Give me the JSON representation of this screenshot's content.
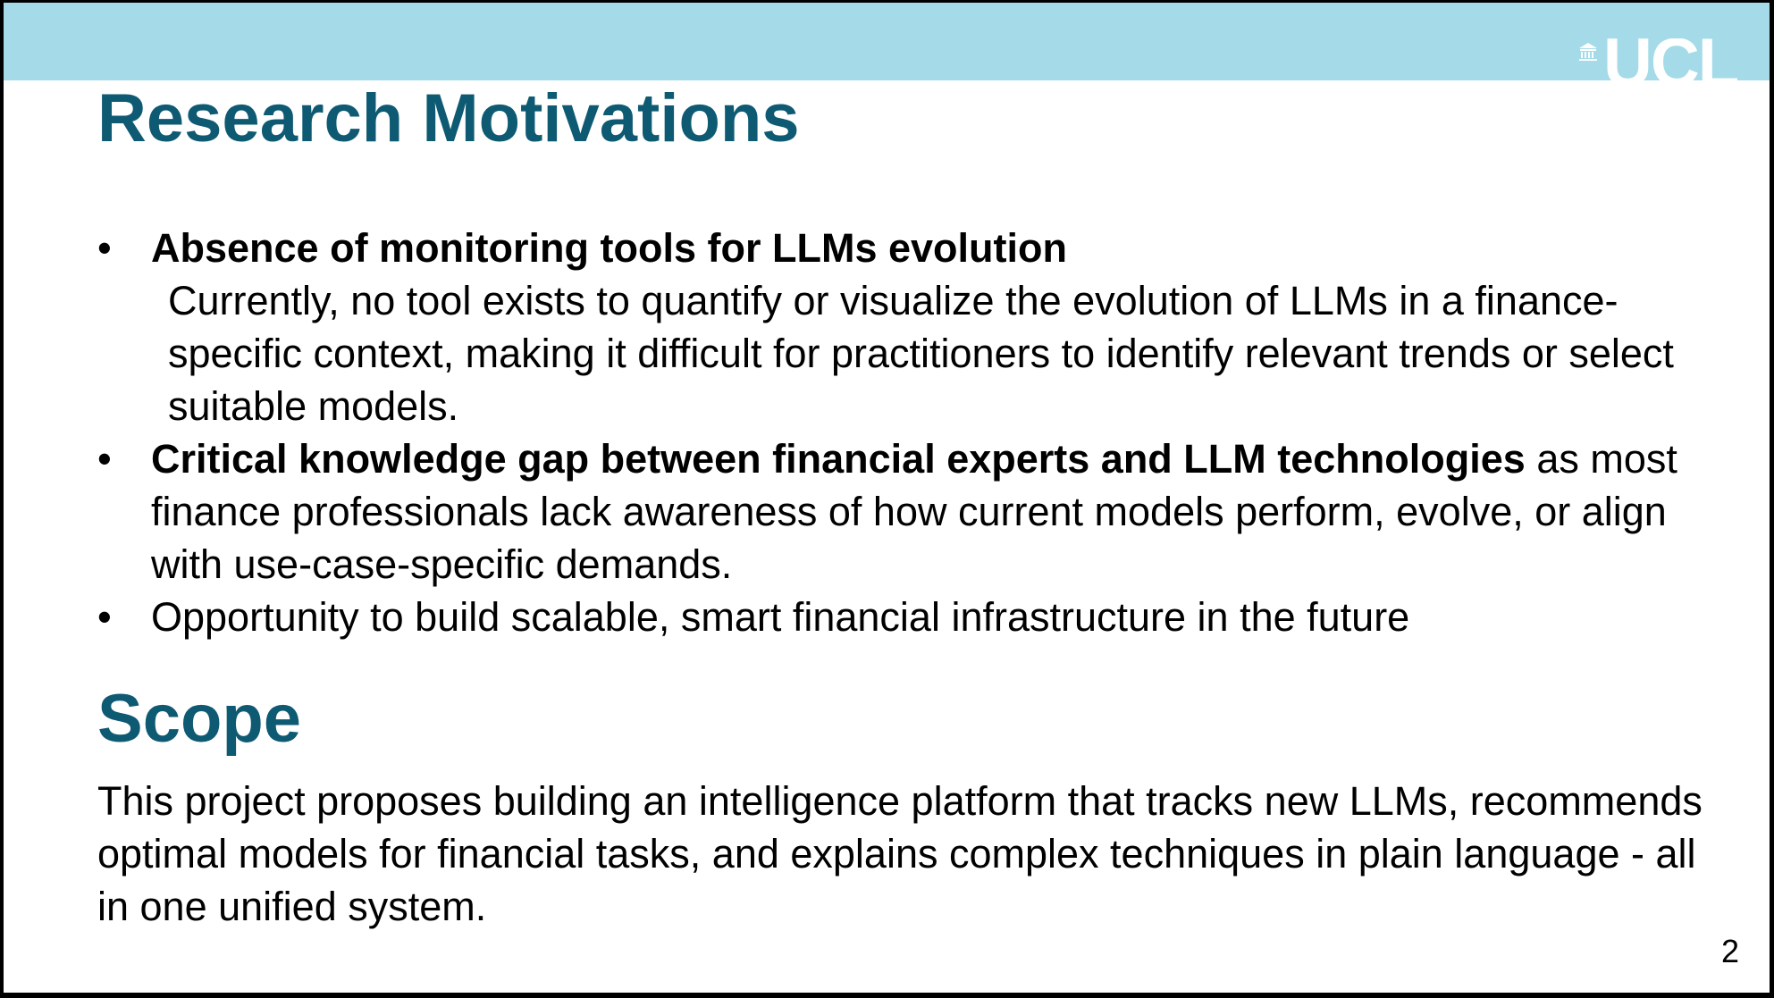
{
  "logo": {
    "text": "UCL"
  },
  "title": "Research Motivations",
  "bullets": [
    {
      "bold": "Absence of monitoring tools for LLMs evolution",
      "tail": "",
      "description": "Currently, no tool exists to quantify or visualize the evolution of LLMs in a finance-specific context, making it difficult for practitioners to identify relevant trends or select suitable models."
    },
    {
      "bold": "Critical knowledge gap between financial experts and LLM technologies",
      "tail": " as most finance professionals lack awareness of how current models perform, evolve, or align with use-case-specific demands.",
      "description": ""
    },
    {
      "bold": "",
      "tail": "Opportunity to build scalable, smart financial infrastructure in the future",
      "description": ""
    }
  ],
  "scope": {
    "title": "Scope",
    "text": "This project proposes building an intelligence platform that tracks new LLMs, recommends optimal models for financial tasks, and explains complex techniques in plain language - all in one unified system."
  },
  "page_number": "2",
  "colors": {
    "band": "#a5dbe8",
    "heading": "#0e5a72"
  }
}
